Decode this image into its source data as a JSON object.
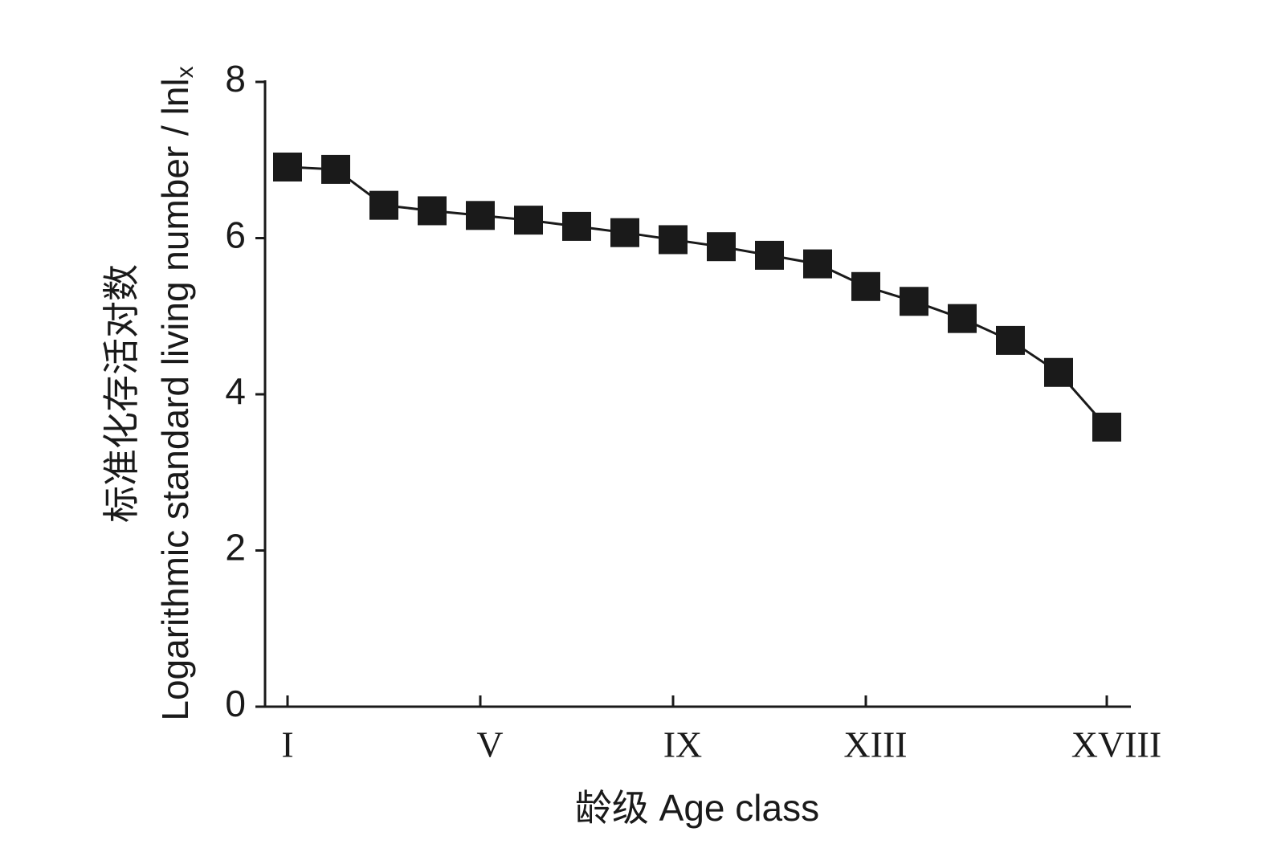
{
  "chart_data": {
    "type": "line",
    "x_label": "龄级 Age class",
    "y_label_cn": "标准化存活对数",
    "y_label_en": "Logarithmic standard living number / lnl",
    "y_label_sub": "x",
    "categories": [
      "I",
      null,
      null,
      null,
      "V",
      null,
      null,
      null,
      "IX",
      null,
      null,
      null,
      "XIII",
      null,
      null,
      null,
      null,
      "XVIII"
    ],
    "series": [
      {
        "color": "#1a1a1a",
        "values": [
          6.91,
          6.88,
          6.42,
          6.35,
          6.29,
          6.23,
          6.15,
          6.07,
          5.98,
          5.89,
          5.78,
          5.67,
          5.38,
          5.19,
          4.97,
          4.69,
          4.28,
          3.58
        ]
      }
    ],
    "ylim": [
      0,
      8
    ],
    "yticks": [
      0,
      2,
      4,
      6,
      8
    ],
    "grid": false
  }
}
